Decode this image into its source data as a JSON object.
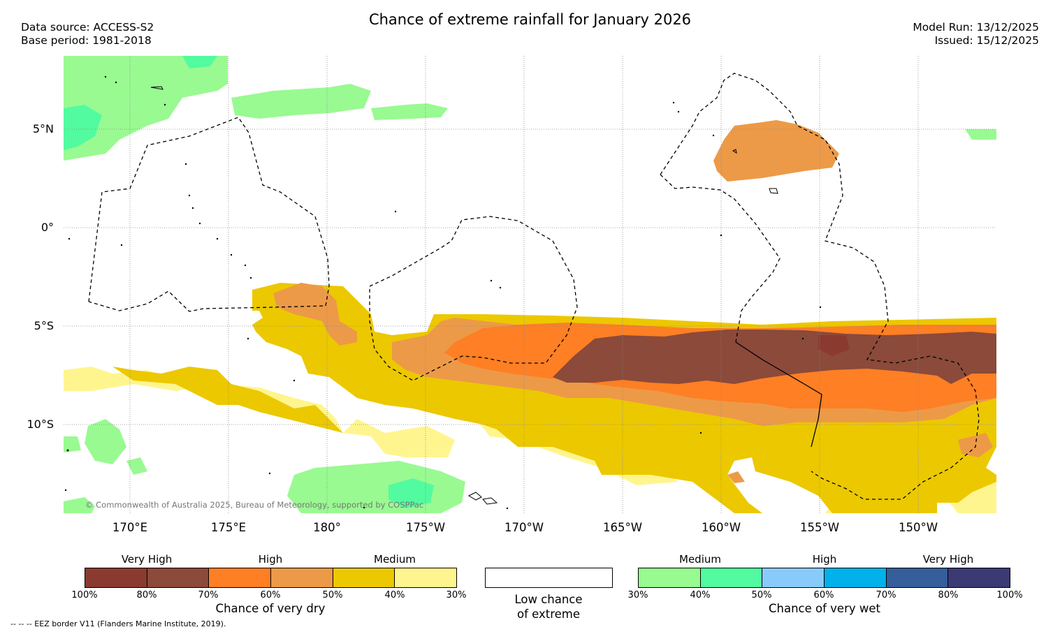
{
  "header": {
    "title": "Chance of extreme rainfall for January 2026",
    "data_source": "Data source: ACCESS-S2",
    "base_period": "Base period: 1981-2018",
    "model_run": "Model Run: 13/12/2025",
    "issued": "Issued: 15/12/2025"
  },
  "map": {
    "latitude_labels": [
      "5°N",
      "0°",
      "5°S",
      "10°S"
    ],
    "longitude_labels": [
      "170°E",
      "175°E",
      "180°",
      "175°W",
      "170°W",
      "165°W",
      "160°W",
      "155°W",
      "150°W"
    ],
    "copyright": "© Commonwealth of Australia 2025, Bureau of Meteorology, supported by COSPPac"
  },
  "legend": {
    "dry": {
      "title": "Chance of very dry",
      "categories": [
        "Very High",
        "High",
        "Medium"
      ],
      "ticks": [
        "100%",
        "80%",
        "70%",
        "60%",
        "50%",
        "40%",
        "30%"
      ],
      "colors": [
        "#8b3a30",
        "#8b4a3a",
        "#fe7f24",
        "#ec9a48",
        "#ecc800",
        "#fff58f"
      ]
    },
    "low": {
      "title_line1": "Low chance",
      "title_line2": "of extreme",
      "color": "#ffffff"
    },
    "wet": {
      "title": "Chance of very wet",
      "categories": [
        "Medium",
        "High",
        "Very High"
      ],
      "ticks": [
        "30%",
        "40%",
        "50%",
        "60%",
        "70%",
        "80%",
        "100%"
      ],
      "colors": [
        "#99fa91",
        "#52fb9f",
        "#88cbfa",
        "#00b1ea",
        "#355f9b",
        "#3b3a74"
      ]
    }
  },
  "footnote": "--  --  -- EEZ border V11 (Flanders Marine Institute, 2019)."
}
